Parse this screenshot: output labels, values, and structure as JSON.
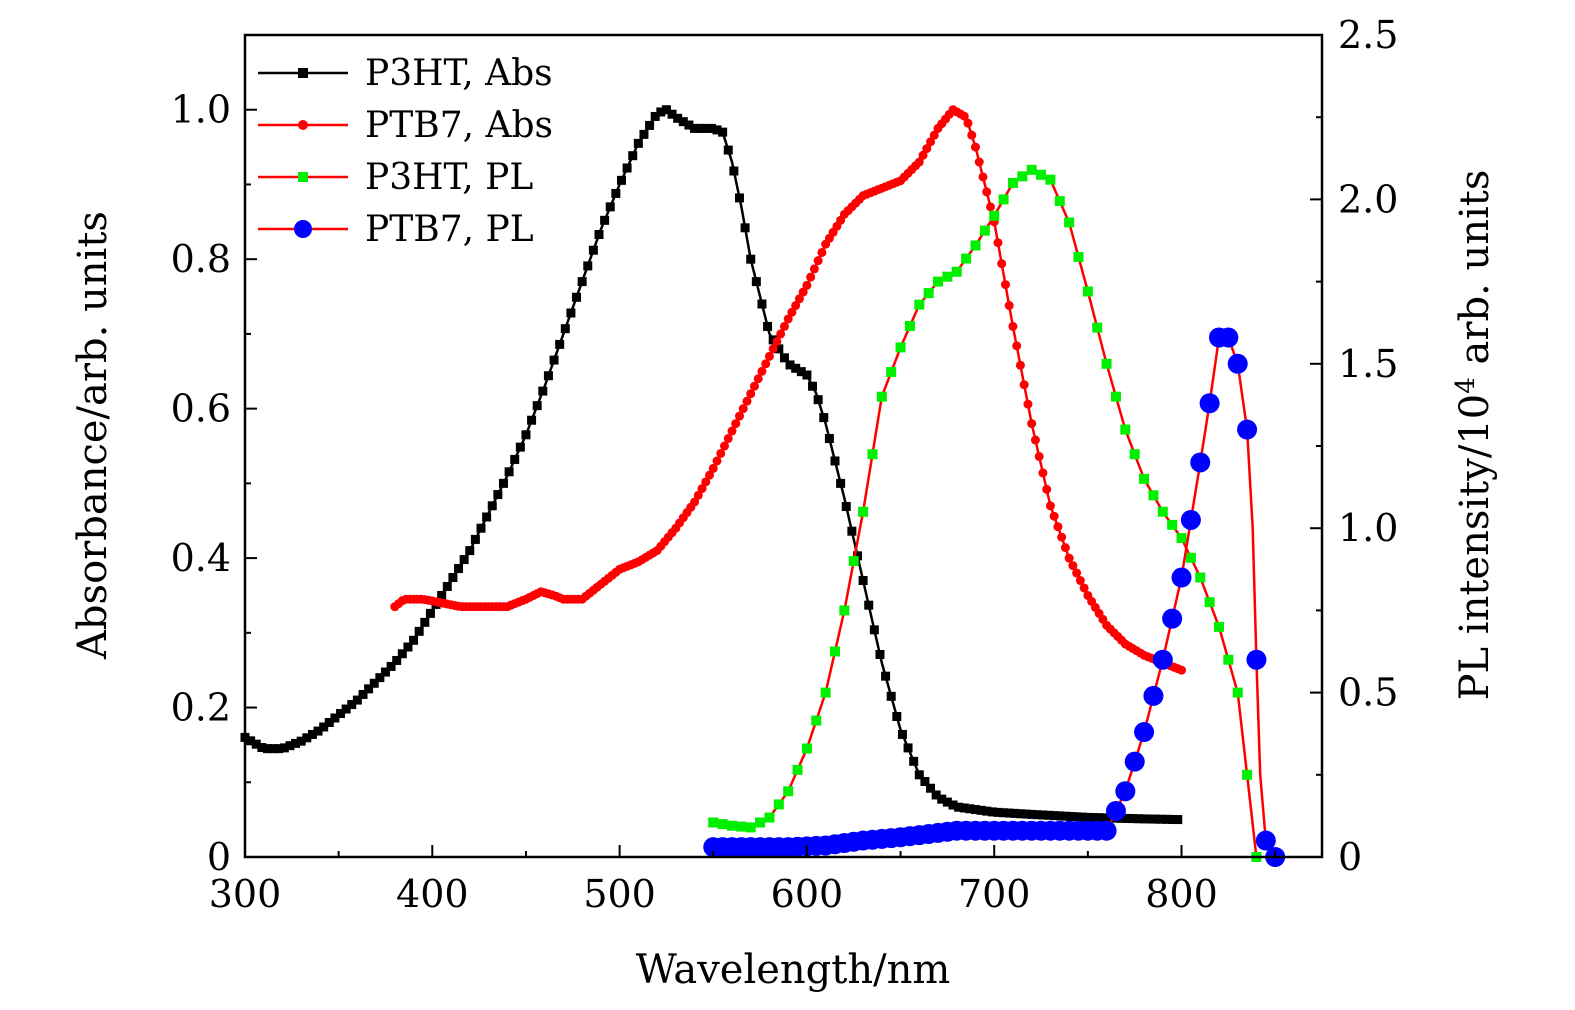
{
  "chart_data": {
    "type": "line",
    "x": {
      "label": "Wavelength/nm",
      "range": [
        300,
        875
      ],
      "ticks": [
        300,
        400,
        500,
        600,
        700,
        800
      ],
      "tick_labels": [
        "300",
        "400",
        "500",
        "600",
        "700",
        "800"
      ]
    },
    "y_left": {
      "label": "Absorbance/arb. units",
      "range": [
        0,
        1.1
      ],
      "ticks": [
        0,
        0.2,
        0.4,
        0.6,
        0.8,
        1.0
      ],
      "tick_labels": [
        "0",
        "0.2",
        "0.4",
        "0.6",
        "0.8",
        "1.0"
      ]
    },
    "y_right": {
      "label_prefix": "PL intensity/10",
      "label_exp": "4",
      "label_suffix": " arb. units",
      "range": [
        0,
        2.5
      ],
      "ticks": [
        0,
        0.5,
        1.0,
        1.5,
        2.0,
        2.5
      ],
      "tick_labels": [
        "0",
        "0.5",
        "1.0",
        "1.5",
        "2.0",
        "2.5"
      ]
    },
    "legend_position": "top-left",
    "series": [
      {
        "name": "P3HT, Abs",
        "axis": "left",
        "line_color": "#000000",
        "marker_color": "#000000",
        "marker": "square",
        "marker_size": 9,
        "step": 3,
        "points": [
          [
            300,
            0.16
          ],
          [
            310,
            0.145
          ],
          [
            320,
            0.145
          ],
          [
            330,
            0.155
          ],
          [
            340,
            0.17
          ],
          [
            350,
            0.19
          ],
          [
            360,
            0.21
          ],
          [
            370,
            0.235
          ],
          [
            380,
            0.26
          ],
          [
            390,
            0.29
          ],
          [
            400,
            0.33
          ],
          [
            410,
            0.37
          ],
          [
            420,
            0.41
          ],
          [
            430,
            0.46
          ],
          [
            440,
            0.51
          ],
          [
            450,
            0.565
          ],
          [
            460,
            0.63
          ],
          [
            470,
            0.7
          ],
          [
            480,
            0.77
          ],
          [
            490,
            0.84
          ],
          [
            500,
            0.9
          ],
          [
            510,
            0.955
          ],
          [
            520,
            0.995
          ],
          [
            525,
            1.0
          ],
          [
            530,
            0.99
          ],
          [
            540,
            0.975
          ],
          [
            550,
            0.975
          ],
          [
            555,
            0.97
          ],
          [
            560,
            0.93
          ],
          [
            565,
            0.87
          ],
          [
            570,
            0.8
          ],
          [
            580,
            0.7
          ],
          [
            590,
            0.66
          ],
          [
            600,
            0.645
          ],
          [
            605,
            0.62
          ],
          [
            610,
            0.58
          ],
          [
            620,
            0.48
          ],
          [
            630,
            0.37
          ],
          [
            640,
            0.26
          ],
          [
            650,
            0.17
          ],
          [
            660,
            0.11
          ],
          [
            670,
            0.08
          ],
          [
            680,
            0.067
          ],
          [
            700,
            0.06
          ],
          [
            720,
            0.057
          ],
          [
            750,
            0.053
          ],
          [
            780,
            0.051
          ],
          [
            800,
            0.05
          ]
        ]
      },
      {
        "name": "PTB7, Abs",
        "axis": "left",
        "line_color": "#ff0000",
        "marker_color": "#ff0000",
        "marker": "circle",
        "marker_size": 9,
        "step": 2,
        "points": [
          [
            380,
            0.335
          ],
          [
            385,
            0.345
          ],
          [
            395,
            0.345
          ],
          [
            405,
            0.34
          ],
          [
            415,
            0.335
          ],
          [
            430,
            0.335
          ],
          [
            440,
            0.335
          ],
          [
            450,
            0.345
          ],
          [
            458,
            0.355
          ],
          [
            465,
            0.35
          ],
          [
            470,
            0.345
          ],
          [
            480,
            0.345
          ],
          [
            490,
            0.365
          ],
          [
            500,
            0.385
          ],
          [
            510,
            0.395
          ],
          [
            520,
            0.41
          ],
          [
            530,
            0.44
          ],
          [
            540,
            0.475
          ],
          [
            550,
            0.52
          ],
          [
            560,
            0.57
          ],
          [
            570,
            0.62
          ],
          [
            580,
            0.67
          ],
          [
            590,
            0.72
          ],
          [
            600,
            0.765
          ],
          [
            610,
            0.82
          ],
          [
            620,
            0.86
          ],
          [
            630,
            0.885
          ],
          [
            640,
            0.895
          ],
          [
            650,
            0.905
          ],
          [
            660,
            0.93
          ],
          [
            670,
            0.975
          ],
          [
            678,
            1.0
          ],
          [
            685,
            0.99
          ],
          [
            690,
            0.95
          ],
          [
            700,
            0.85
          ],
          [
            710,
            0.71
          ],
          [
            720,
            0.58
          ],
          [
            730,
            0.47
          ],
          [
            740,
            0.4
          ],
          [
            750,
            0.35
          ],
          [
            760,
            0.31
          ],
          [
            770,
            0.285
          ],
          [
            780,
            0.27
          ],
          [
            790,
            0.26
          ],
          [
            800,
            0.25
          ]
        ]
      },
      {
        "name": "P3HT, PL",
        "axis": "right",
        "line_color": "#ff0000",
        "marker_color": "#00ee00",
        "marker": "square",
        "marker_size": 10,
        "step": 5,
        "points": [
          [
            550,
            0.105
          ],
          [
            560,
            0.095
          ],
          [
            570,
            0.09
          ],
          [
            580,
            0.12
          ],
          [
            590,
            0.2
          ],
          [
            600,
            0.33
          ],
          [
            610,
            0.5
          ],
          [
            620,
            0.75
          ],
          [
            630,
            1.05
          ],
          [
            640,
            1.4
          ],
          [
            650,
            1.55
          ],
          [
            660,
            1.68
          ],
          [
            670,
            1.75
          ],
          [
            680,
            1.78
          ],
          [
            690,
            1.86
          ],
          [
            700,
            1.95
          ],
          [
            710,
            2.05
          ],
          [
            720,
            2.09
          ],
          [
            730,
            2.06
          ],
          [
            740,
            1.93
          ],
          [
            750,
            1.72
          ],
          [
            760,
            1.5
          ],
          [
            770,
            1.3
          ],
          [
            780,
            1.15
          ],
          [
            790,
            1.05
          ],
          [
            800,
            0.97
          ],
          [
            810,
            0.85
          ],
          [
            820,
            0.7
          ],
          [
            830,
            0.5
          ],
          [
            835,
            0.25
          ],
          [
            840,
            0.0
          ]
        ]
      },
      {
        "name": "PTB7, PL",
        "axis": "right",
        "line_color": "#ff0000",
        "marker_color": "#0000ff",
        "marker": "circle",
        "marker_size": 20,
        "step": 5,
        "points": [
          [
            550,
            0.03
          ],
          [
            570,
            0.03
          ],
          [
            590,
            0.03
          ],
          [
            610,
            0.035
          ],
          [
            630,
            0.05
          ],
          [
            650,
            0.06
          ],
          [
            680,
            0.08
          ],
          [
            700,
            0.08
          ],
          [
            720,
            0.08
          ],
          [
            745,
            0.08
          ],
          [
            760,
            0.08
          ],
          [
            770,
            0.2
          ],
          [
            780,
            0.38
          ],
          [
            790,
            0.6
          ],
          [
            800,
            0.85
          ],
          [
            810,
            1.2
          ],
          [
            815,
            1.38
          ],
          [
            820,
            1.58
          ],
          [
            825,
            1.58
          ],
          [
            830,
            1.5
          ],
          [
            835,
            1.3
          ],
          [
            838,
            1.0
          ],
          [
            840,
            0.6
          ],
          [
            842,
            0.25
          ],
          [
            845,
            0.05
          ],
          [
            850,
            0.0
          ]
        ]
      }
    ]
  }
}
